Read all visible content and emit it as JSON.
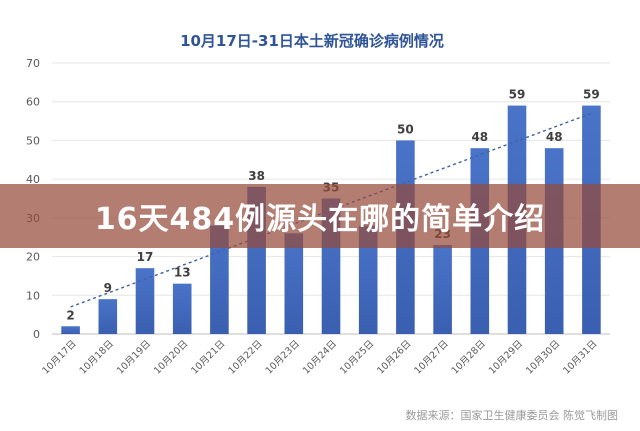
{
  "banner": {
    "text": "16天484例源头在哪的简单介绍"
  },
  "source_note": "数据来源：国家卫生健康委员会    陈觉飞制图",
  "colors": {
    "bar": "#4a74c9",
    "bar_dark": "#3a5fb0",
    "trend": "#3d63a8",
    "title": "#2f5597",
    "axis": "#bfbfbf",
    "grid": "#e6e6e6",
    "label": "#404040",
    "banner": "#964b3c"
  },
  "chart_data": {
    "type": "bar",
    "title": "10月17日-31日本土新冠确诊病例情况",
    "categories": [
      "10月17日",
      "10月18日",
      "10月19日",
      "10月20日",
      "10月21日",
      "10月22日",
      "10月23日",
      "10月24日",
      "10月25日",
      "10月26日",
      "10月27日",
      "10月28日",
      "10月29日",
      "10月30日",
      "10月31日"
    ],
    "values": [
      2,
      9,
      17,
      13,
      28,
      38,
      26,
      35,
      28,
      50,
      23,
      48,
      59,
      48,
      59
    ],
    "data_labels": [
      "2",
      "9",
      "17",
      "13",
      "",
      "38",
      "",
      "35",
      "",
      "50",
      "23",
      "48",
      "59",
      "48",
      "59"
    ],
    "yticks": [
      0,
      10,
      20,
      30,
      40,
      50,
      60,
      70
    ],
    "ylim": [
      0,
      70
    ],
    "trendline": {
      "type": "linear",
      "start": 7,
      "end": 57
    },
    "grid": true,
    "legend": "none"
  }
}
